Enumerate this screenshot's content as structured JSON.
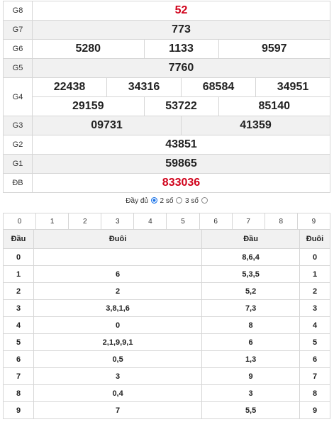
{
  "prizes": {
    "g8": {
      "label": "G8",
      "values": [
        "52"
      ]
    },
    "g7": {
      "label": "G7",
      "values": [
        "773"
      ]
    },
    "g6": {
      "label": "G6",
      "values": [
        "5280",
        "1133",
        "9597"
      ]
    },
    "g5": {
      "label": "G5",
      "values": [
        "7760"
      ]
    },
    "g4": {
      "label": "G4",
      "values": [
        "22438",
        "34316",
        "68584",
        "34951",
        "29159",
        "53722",
        "85140"
      ]
    },
    "g3": {
      "label": "G3",
      "values": [
        "09731",
        "41359"
      ]
    },
    "g2": {
      "label": "G2",
      "values": [
        "43851"
      ]
    },
    "g1": {
      "label": "G1",
      "values": [
        "59865"
      ]
    },
    "db": {
      "label": "ĐB",
      "values": [
        "833036"
      ]
    }
  },
  "options": {
    "full": "Đầy đủ",
    "two": "2 số",
    "three": "3 số",
    "selected": "full"
  },
  "digit_tabs": [
    "0",
    "1",
    "2",
    "3",
    "4",
    "5",
    "6",
    "7",
    "8",
    "9"
  ],
  "table": {
    "headers": [
      "Đầu",
      "Đuôi",
      "Đầu",
      "Đuôi"
    ],
    "rows": [
      [
        "0",
        "",
        "8,6,4",
        "0"
      ],
      [
        "1",
        "6",
        "5,3,5",
        "1"
      ],
      [
        "2",
        "2",
        "5,2",
        "2"
      ],
      [
        "3",
        "3,8,1,6",
        "7,3",
        "3"
      ],
      [
        "4",
        "0",
        "8",
        "4"
      ],
      [
        "5",
        "2,1,9,9,1",
        "6",
        "5"
      ],
      [
        "6",
        "0,5",
        "1,3",
        "6"
      ],
      [
        "7",
        "3",
        "9",
        "7"
      ],
      [
        "8",
        "0,4",
        "3",
        "8"
      ],
      [
        "9",
        "7",
        "5,5",
        "9"
      ]
    ]
  },
  "colors": {
    "highlight": "#d0021b",
    "radio_on": "#1a73e8"
  }
}
